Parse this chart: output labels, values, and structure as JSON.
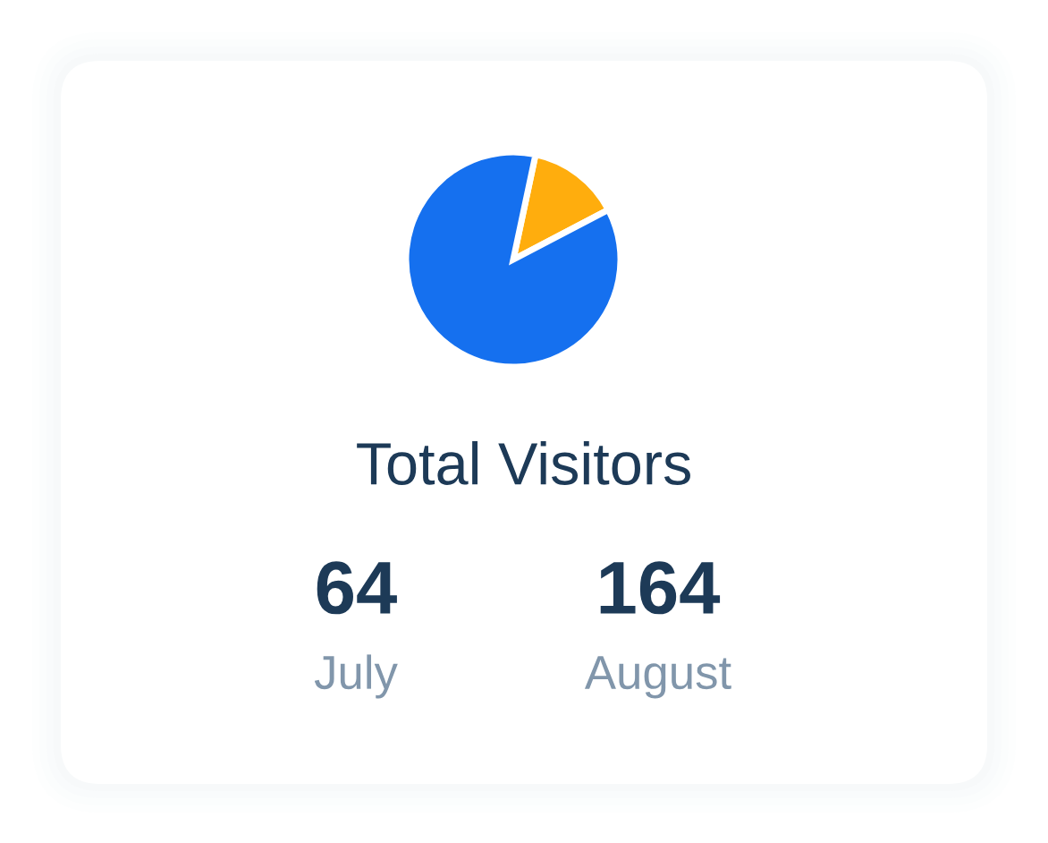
{
  "chart_data": {
    "type": "pie",
    "title": "Total Visitors",
    "categories": [
      null,
      null
    ],
    "values": [
      14,
      86
    ],
    "colors": [
      "#ffad0d",
      "#1570ef"
    ],
    "annotations": [
      "64",
      "July",
      "164",
      "August"
    ]
  }
}
